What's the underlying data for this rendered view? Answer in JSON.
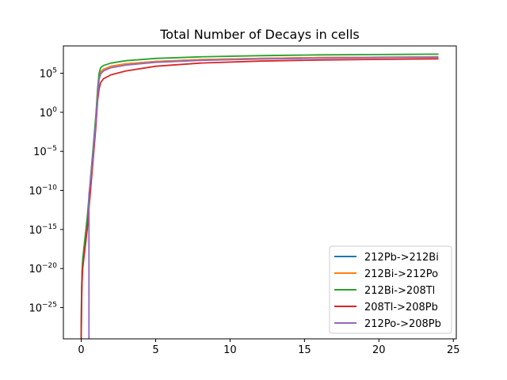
{
  "chart_data": {
    "type": "line",
    "title": "Total Number of Decays in cells",
    "xlabel": "",
    "ylabel": "",
    "yscale": "log",
    "xlim": [
      -1.2,
      25.2
    ],
    "ylim_log10": [
      -29,
      8.5
    ],
    "x_ticks": [
      0,
      5,
      10,
      15,
      20,
      25
    ],
    "x_tick_labels": [
      "0",
      "5",
      "10",
      "15",
      "20",
      "25"
    ],
    "y_ticks_log10": [
      5,
      0,
      -5,
      -10,
      -15,
      -20,
      -25
    ],
    "y_tick_labels": [
      "10^5",
      "10^0",
      "10^-5",
      "10^-10",
      "10^-15",
      "10^-20",
      "10^-25"
    ],
    "grid": false,
    "legend_position": "lower-right",
    "series": [
      {
        "name": "212Pb->212Bi",
        "color": "#1f77b4",
        "x": [
          0,
          0.02,
          0.05,
          0.1,
          0.2,
          0.4,
          0.6,
          0.8,
          1.0,
          1.1,
          1.2,
          1.3,
          1.5,
          2,
          3,
          5,
          8,
          12,
          16,
          20,
          24
        ],
        "log10_y": [
          -29,
          -24,
          -21,
          -19.2,
          -17.5,
          -14,
          -9.5,
          -5,
          -0.5,
          2.5,
          4.5,
          5.2,
          5.5,
          5.9,
          6.2,
          6.5,
          6.75,
          6.9,
          7.0,
          7.05,
          7.1
        ]
      },
      {
        "name": "212Bi->212Po",
        "color": "#ff7f0e",
        "x": [
          0,
          0.02,
          0.05,
          0.1,
          0.2,
          0.4,
          0.6,
          0.8,
          1.0,
          1.1,
          1.2,
          1.3,
          1.5,
          2,
          3,
          5,
          8,
          12,
          16,
          20,
          24
        ],
        "log10_y": [
          -29,
          -24,
          -21,
          -19.2,
          -17.5,
          -14,
          -9.5,
          -5,
          -0.5,
          2.5,
          4.5,
          5.2,
          5.5,
          5.9,
          6.2,
          6.5,
          6.75,
          6.9,
          7.0,
          7.05,
          7.1
        ]
      },
      {
        "name": "212Bi->208Tl",
        "color": "#2ca02c",
        "x": [
          0,
          0.02,
          0.05,
          0.1,
          0.2,
          0.4,
          0.6,
          0.8,
          1.0,
          1.1,
          1.2,
          1.3,
          1.5,
          2,
          3,
          5,
          8,
          12,
          16,
          20,
          24
        ],
        "log10_y": [
          -29,
          -23.5,
          -20.5,
          -18.8,
          -17,
          -13.5,
          -9,
          -4.5,
          0,
          3,
          5,
          5.7,
          6.0,
          6.3,
          6.6,
          6.9,
          7.1,
          7.25,
          7.35,
          7.4,
          7.45
        ]
      },
      {
        "name": "208Tl->208Pb",
        "color": "#d62728",
        "x": [
          0,
          0.02,
          0.05,
          0.1,
          0.2,
          0.4,
          0.6,
          0.8,
          1.0,
          1.1,
          1.2,
          1.3,
          1.5,
          2,
          3,
          5,
          8,
          12,
          16,
          20,
          24
        ],
        "log10_y": [
          -29,
          -25,
          -22,
          -20,
          -18.3,
          -15,
          -10.5,
          -6,
          -1.5,
          1.5,
          3.0,
          3.8,
          4.3,
          4.8,
          5.3,
          5.9,
          6.3,
          6.55,
          6.7,
          6.78,
          6.85
        ]
      },
      {
        "name": "212Po->208Pb",
        "color": "#9467bd",
        "x": [
          0.52,
          0.52,
          0.6,
          0.8,
          1.0,
          1.1,
          1.2,
          1.3,
          1.5,
          2,
          3,
          5,
          8,
          12,
          16,
          20,
          24
        ],
        "log10_y": [
          -29,
          -10.5,
          -9.2,
          -5.2,
          -0.8,
          2.2,
          4.2,
          4.9,
          5.3,
          5.7,
          6.05,
          6.4,
          6.65,
          6.82,
          6.93,
          7.0,
          7.05
        ]
      }
    ]
  }
}
